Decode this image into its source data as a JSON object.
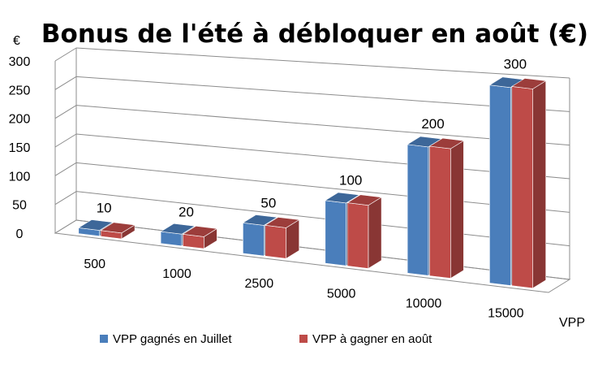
{
  "chart_data": {
    "type": "bar",
    "title": "Bonus de l'été à débloquer en août (€)",
    "ylabel": "€",
    "xlabel": "VPP",
    "ylim": [
      0,
      300
    ],
    "yticks": [
      0,
      50,
      100,
      150,
      200,
      250,
      300
    ],
    "categories": [
      "500",
      "1000",
      "2500",
      "5000",
      "10000",
      "15000"
    ],
    "series": [
      {
        "name": "VPP gagnés en Juillet",
        "color": "#4a7ebb",
        "values": [
          10,
          20,
          50,
          100,
          200,
          300
        ]
      },
      {
        "name": "VPP à gagner en août",
        "color": "#be4b48",
        "values": [
          10,
          20,
          50,
          100,
          200,
          300
        ]
      }
    ],
    "data_labels": [
      "10",
      "20",
      "50",
      "100",
      "200",
      "300"
    ],
    "legend_position": "bottom",
    "grid": true
  }
}
